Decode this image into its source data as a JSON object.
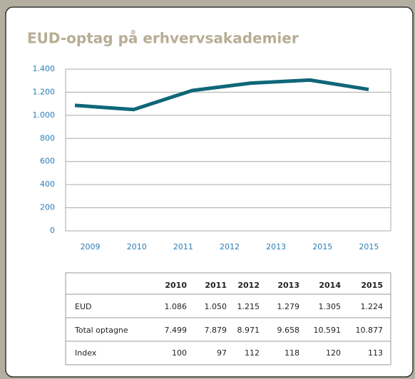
{
  "chart_data": {
    "type": "line",
    "title": "EUD-optag på erhvervsakademier",
    "categories": [
      "2010",
      "2011",
      "2012",
      "2013",
      "2014",
      "2015"
    ],
    "x_axis_labels": [
      "2009",
      "2010",
      "2011",
      "2012",
      "2013",
      "2015",
      "2015"
    ],
    "values": [
      1086,
      1050,
      1215,
      1279,
      1305,
      1224
    ],
    "color": "#0f6778",
    "ylim": [
      0,
      1400
    ],
    "yticks": [
      0,
      200,
      400,
      600,
      800,
      {
        "value": 1000,
        "label": "1.000"
      },
      {
        "value": 1200,
        "label": "1.200"
      },
      {
        "value": 1400,
        "label": "1.400"
      }
    ],
    "grid": true
  },
  "table": {
    "header": [
      "2010",
      "2011",
      "2012",
      "2013",
      "2014",
      "2015"
    ],
    "rows": [
      [
        "EUD",
        "1.086",
        "1.050",
        "1.215",
        "1.279",
        "1.305",
        "1.224"
      ],
      [
        "Total optagne",
        "7.499",
        "7.879",
        "8.971",
        "9.658",
        "10.591",
        "10.877"
      ],
      [
        "Index",
        "100",
        "97",
        "112",
        "118",
        "120",
        "113"
      ]
    ]
  }
}
